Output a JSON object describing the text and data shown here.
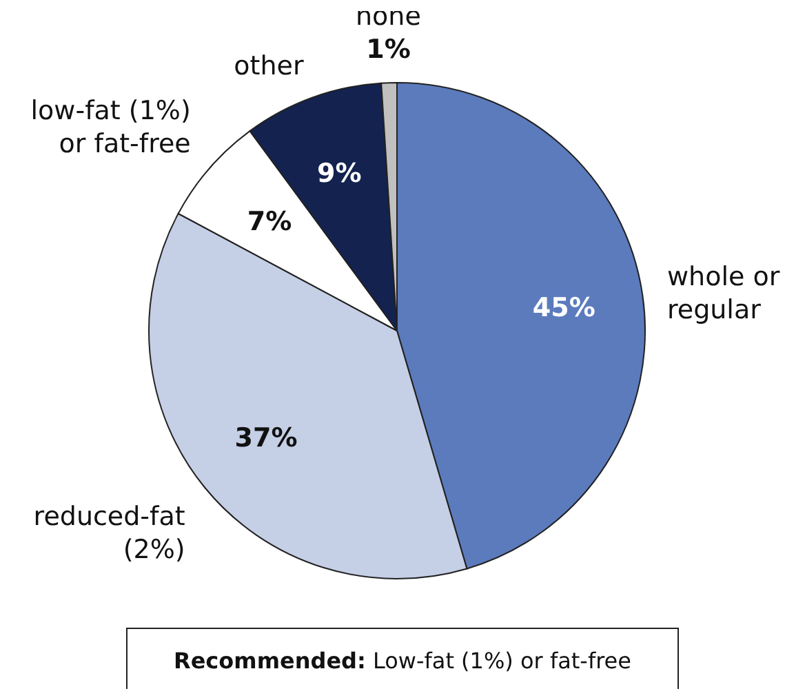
{
  "chart_data": {
    "type": "pie",
    "categories": [
      "whole or regular",
      "reduced-fat (2%)",
      "low-fat (1%) or fat-free",
      "other",
      "none"
    ],
    "values": [
      45,
      37,
      7,
      9,
      1
    ],
    "colors": [
      "#5b7bbd",
      "#c5cfe6",
      "#ffffff",
      "#13224f",
      "#c0c0c0"
    ],
    "value_labels": [
      "45%",
      "37%",
      "7%",
      "9%",
      "1%"
    ],
    "annotations": [
      "Recommended: Low-fat (1%) or fat-free"
    ]
  }
}
